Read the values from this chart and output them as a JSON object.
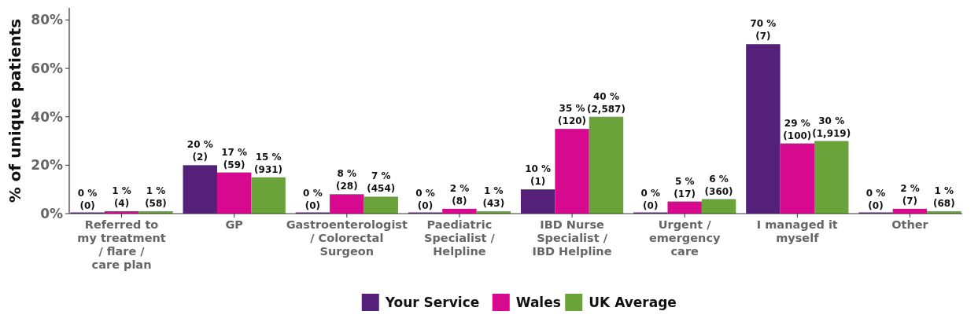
{
  "chart_data": {
    "type": "bar",
    "ylabel": "% of unique patients",
    "categories": [
      "Referred to my treatment / flare / care plan",
      "GP",
      "Gastroenterologist / Colorectal Surgeon",
      "Paediatric Specialist / Helpline",
      "IBD Nurse Specialist / IBD Helpline",
      "Urgent / emergency care",
      "I managed it myself",
      "Other"
    ],
    "series": [
      {
        "name": "Your Service",
        "color": "#54207a",
        "values": [
          0,
          20,
          0,
          0,
          10,
          0,
          70,
          0
        ],
        "value_labels": [
          "0 %\n(0)",
          "20 %\n(2)",
          "0 %\n(0)",
          "0 %\n(0)",
          "10 %\n(1)",
          "0 %\n(0)",
          "70 %\n(7)",
          "0 %\n(0)"
        ]
      },
      {
        "name": "Wales",
        "color": "#d6098f",
        "values": [
          1,
          17,
          8,
          2,
          35,
          5,
          29,
          2
        ],
        "value_labels": [
          "1 %\n(4)",
          "17 %\n(59)",
          "8 %\n(28)",
          "2 %\n(8)",
          "35 %\n(120)",
          "5 %\n(17)",
          "29 %\n(100)",
          "2 %\n(7)"
        ]
      },
      {
        "name": "UK Average",
        "color": "#6aa339",
        "values": [
          1,
          15,
          7,
          1,
          40,
          6,
          30,
          1
        ],
        "value_labels": [
          "1 %\n(58)",
          "15 %\n(931)",
          "7 %\n(454)",
          "1 %\n(43)",
          "40 %\n(2,587)",
          "6 %\n(360)",
          "30 %\n(1,919)",
          "1 %\n(68)"
        ]
      }
    ],
    "ylim": [
      0,
      85
    ],
    "yticks": [
      {
        "value": 0,
        "label": "0%"
      },
      {
        "value": 20,
        "label": "20%"
      },
      {
        "value": 40,
        "label": "40%"
      },
      {
        "value": 60,
        "label": "60%"
      },
      {
        "value": 80,
        "label": "80%"
      }
    ],
    "grid": false,
    "legend": "bottom"
  }
}
